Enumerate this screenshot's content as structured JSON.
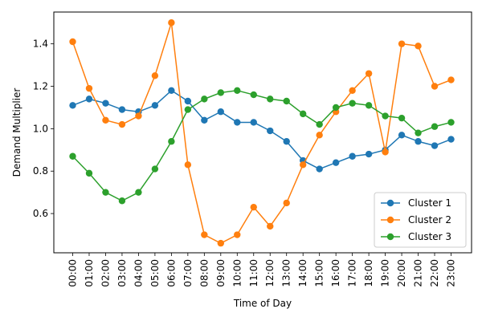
{
  "chart_data": {
    "type": "line",
    "title": "",
    "xlabel": "Time of Day",
    "ylabel": "Demand Multiplier",
    "categories": [
      "00:00",
      "01:00",
      "02:00",
      "03:00",
      "04:00",
      "05:00",
      "06:00",
      "07:00",
      "08:00",
      "09:00",
      "10:00",
      "11:00",
      "12:00",
      "13:00",
      "14:00",
      "15:00",
      "16:00",
      "17:00",
      "18:00",
      "19:00",
      "20:00",
      "21:00",
      "22:00",
      "23:00"
    ],
    "yticks": [
      "0.6",
      "0.8",
      "1.0",
      "1.2",
      "1.4"
    ],
    "ylim": [
      0.415,
      1.55
    ],
    "grid": false,
    "legend_position": "lower-right",
    "series": [
      {
        "name": "Cluster 1",
        "color": "#1f77b4",
        "values": [
          1.11,
          1.14,
          1.12,
          1.09,
          1.08,
          1.11,
          1.18,
          1.13,
          1.04,
          1.08,
          1.03,
          1.03,
          0.99,
          0.94,
          0.85,
          0.81,
          0.84,
          0.87,
          0.88,
          0.9,
          0.97,
          0.94,
          0.92,
          0.95
        ]
      },
      {
        "name": "Cluster 2",
        "color": "#ff7f0e",
        "values": [
          1.41,
          1.19,
          1.04,
          1.02,
          1.06,
          1.25,
          1.5,
          0.83,
          0.5,
          0.46,
          0.5,
          0.63,
          0.54,
          0.65,
          0.83,
          0.97,
          1.08,
          1.18,
          1.26,
          0.89,
          1.4,
          1.39,
          1.2,
          1.23
        ]
      },
      {
        "name": "Cluster 3",
        "color": "#2ca02c",
        "values": [
          0.87,
          0.79,
          0.7,
          0.66,
          0.7,
          0.81,
          0.94,
          1.09,
          1.14,
          1.17,
          1.18,
          1.16,
          1.14,
          1.13,
          1.07,
          1.02,
          1.1,
          1.12,
          1.11,
          1.06,
          1.05,
          0.98,
          1.01,
          1.03
        ]
      }
    ]
  }
}
